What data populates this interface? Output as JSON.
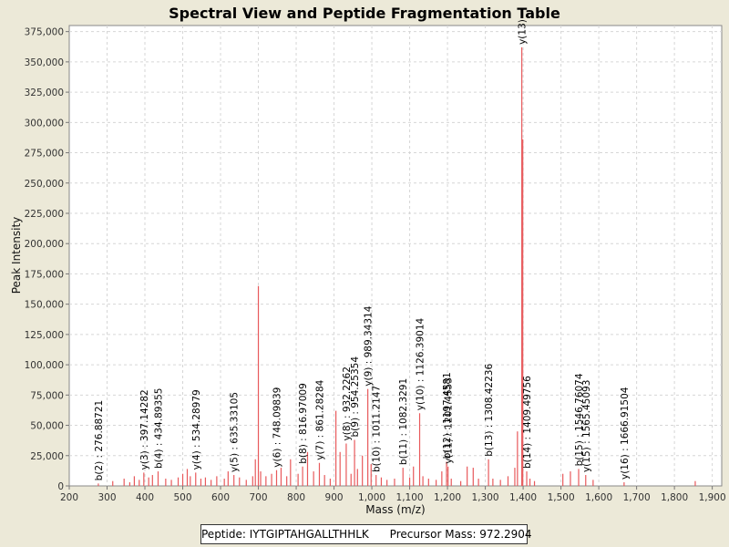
{
  "chart_data": {
    "type": "bar",
    "title": "Spectral View and Peptide Fragmentation Table",
    "xlabel": "Mass (m/z)",
    "ylabel": "Peak Intensity",
    "xlim": [
      200,
      1925
    ],
    "ylim": [
      0,
      380000
    ],
    "xticks": [
      200,
      300,
      400,
      500,
      600,
      700,
      800,
      900,
      1000,
      1100,
      1200,
      1300,
      1400,
      1500,
      1600,
      1700,
      1800,
      1900
    ],
    "xtick_labels": [
      "200",
      "300",
      "400",
      "500",
      "600",
      "700",
      "800",
      "900",
      "1,000",
      "1,100",
      "1,200",
      "1,300",
      "1,400",
      "1,500",
      "1,600",
      "1,700",
      "1,800",
      "1,900"
    ],
    "yticks": [
      0,
      25000,
      50000,
      75000,
      100000,
      125000,
      150000,
      175000,
      200000,
      225000,
      250000,
      275000,
      300000,
      325000,
      350000,
      375000
    ],
    "ytick_labels": [
      "0",
      "25,000",
      "50,000",
      "75,000",
      "100,000",
      "125,000",
      "150,000",
      "175,000",
      "200,000",
      "225,000",
      "250,000",
      "275,000",
      "300,000",
      "325,000",
      "350,000",
      "375,000"
    ],
    "grid": true,
    "peak_color": "#e8595b",
    "peaks": [
      {
        "mz": 276.89,
        "intensity": 2000
      },
      {
        "mz": 315,
        "intensity": 4000
      },
      {
        "mz": 345,
        "intensity": 6000
      },
      {
        "mz": 360,
        "intensity": 3000
      },
      {
        "mz": 372,
        "intensity": 8000
      },
      {
        "mz": 385,
        "intensity": 5000
      },
      {
        "mz": 397.14,
        "intensity": 11000
      },
      {
        "mz": 410,
        "intensity": 7000
      },
      {
        "mz": 420,
        "intensity": 9000
      },
      {
        "mz": 434.89,
        "intensity": 12000
      },
      {
        "mz": 455,
        "intensity": 6000
      },
      {
        "mz": 470,
        "intensity": 5000
      },
      {
        "mz": 488,
        "intensity": 7000
      },
      {
        "mz": 500,
        "intensity": 10000
      },
      {
        "mz": 512,
        "intensity": 14000
      },
      {
        "mz": 520,
        "intensity": 8000
      },
      {
        "mz": 534.29,
        "intensity": 11000
      },
      {
        "mz": 548,
        "intensity": 6000
      },
      {
        "mz": 560,
        "intensity": 7000
      },
      {
        "mz": 575,
        "intensity": 5000
      },
      {
        "mz": 590,
        "intensity": 8000
      },
      {
        "mz": 610,
        "intensity": 6000
      },
      {
        "mz": 620,
        "intensity": 12000
      },
      {
        "mz": 635.33,
        "intensity": 9000
      },
      {
        "mz": 650,
        "intensity": 7000
      },
      {
        "mz": 668,
        "intensity": 5000
      },
      {
        "mz": 685,
        "intensity": 8000
      },
      {
        "mz": 692,
        "intensity": 22000
      },
      {
        "mz": 700,
        "intensity": 165000
      },
      {
        "mz": 706,
        "intensity": 12000
      },
      {
        "mz": 720,
        "intensity": 8000
      },
      {
        "mz": 735,
        "intensity": 10000
      },
      {
        "mz": 748.1,
        "intensity": 13000
      },
      {
        "mz": 760,
        "intensity": 15000
      },
      {
        "mz": 775,
        "intensity": 8000
      },
      {
        "mz": 785,
        "intensity": 22000
      },
      {
        "mz": 805,
        "intensity": 10000
      },
      {
        "mz": 816.97,
        "intensity": 16000
      },
      {
        "mz": 830,
        "intensity": 28000
      },
      {
        "mz": 846,
        "intensity": 12000
      },
      {
        "mz": 861.28,
        "intensity": 19000
      },
      {
        "mz": 875,
        "intensity": 9000
      },
      {
        "mz": 890,
        "intensity": 6000
      },
      {
        "mz": 905,
        "intensity": 62000
      },
      {
        "mz": 916,
        "intensity": 28000
      },
      {
        "mz": 932.23,
        "intensity": 35000
      },
      {
        "mz": 945,
        "intensity": 10000
      },
      {
        "mz": 954.25,
        "intensity": 38000
      },
      {
        "mz": 962,
        "intensity": 14000
      },
      {
        "mz": 975,
        "intensity": 25000
      },
      {
        "mz": 989.34,
        "intensity": 80000
      },
      {
        "mz": 998,
        "intensity": 18000
      },
      {
        "mz": 1011.21,
        "intensity": 9000
      },
      {
        "mz": 1025,
        "intensity": 7000
      },
      {
        "mz": 1040,
        "intensity": 5000
      },
      {
        "mz": 1060,
        "intensity": 6000
      },
      {
        "mz": 1082.33,
        "intensity": 15000
      },
      {
        "mz": 1100,
        "intensity": 7000
      },
      {
        "mz": 1110,
        "intensity": 16000
      },
      {
        "mz": 1126.39,
        "intensity": 60000
      },
      {
        "mz": 1135,
        "intensity": 8000
      },
      {
        "mz": 1150,
        "intensity": 6000
      },
      {
        "mz": 1170,
        "intensity": 5000
      },
      {
        "mz": 1185,
        "intensity": 12000
      },
      {
        "mz": 1197.45,
        "intensity": 20000
      },
      {
        "mz": 1201.45,
        "intensity": 16000
      },
      {
        "mz": 1210,
        "intensity": 6000
      },
      {
        "mz": 1235,
        "intensity": 4000
      },
      {
        "mz": 1252,
        "intensity": 16000
      },
      {
        "mz": 1268,
        "intensity": 15000
      },
      {
        "mz": 1282,
        "intensity": 6000
      },
      {
        "mz": 1308.42,
        "intensity": 22000
      },
      {
        "mz": 1320,
        "intensity": 6000
      },
      {
        "mz": 1340,
        "intensity": 5000
      },
      {
        "mz": 1360,
        "intensity": 8000
      },
      {
        "mz": 1378,
        "intensity": 15000
      },
      {
        "mz": 1385,
        "intensity": 45000
      },
      {
        "mz": 1396.5,
        "intensity": 362000
      },
      {
        "mz": 1399,
        "intensity": 286000
      },
      {
        "mz": 1409.5,
        "intensity": 12000
      },
      {
        "mz": 1418,
        "intensity": 6000
      },
      {
        "mz": 1430,
        "intensity": 4000
      },
      {
        "mz": 1505,
        "intensity": 10000
      },
      {
        "mz": 1525,
        "intensity": 12000
      },
      {
        "mz": 1546.76,
        "intensity": 14000
      },
      {
        "mz": 1565.45,
        "intensity": 9000
      },
      {
        "mz": 1585,
        "intensity": 5000
      },
      {
        "mz": 1666.92,
        "intensity": 3000
      },
      {
        "mz": 1855,
        "intensity": 4000
      }
    ],
    "annotations": [
      {
        "label": "b(2) : 276.88721",
        "mz": 276.89,
        "intensity": 2000
      },
      {
        "label": "y(3) : 397.14282",
        "mz": 397.14,
        "intensity": 11000
      },
      {
        "label": "b(4) : 434.89355",
        "mz": 434.89,
        "intensity": 12000
      },
      {
        "label": "y(4) : 534.28979",
        "mz": 534.29,
        "intensity": 11000
      },
      {
        "label": "y(5) : 635.33105",
        "mz": 635.33,
        "intensity": 9000
      },
      {
        "label": "y(6) : 748.09839",
        "mz": 748.1,
        "intensity": 13000
      },
      {
        "label": "b(8) : 816.97009",
        "mz": 816.97,
        "intensity": 16000
      },
      {
        "label": "y(7) : 861.28284",
        "mz": 861.28,
        "intensity": 19000
      },
      {
        "label": "y(8) : 932.2262",
        "mz": 932.23,
        "intensity": 35000
      },
      {
        "label": "b(9) : 954.25354",
        "mz": 954.25,
        "intensity": 38000
      },
      {
        "label": "y(9) : 989.34314",
        "mz": 989.34,
        "intensity": 80000
      },
      {
        "label": "b(10) : 1011.2147",
        "mz": 1011.21,
        "intensity": 9000
      },
      {
        "label": "b(11) : 1082.3291",
        "mz": 1082.33,
        "intensity": 15000
      },
      {
        "label": "y(10) : 1126.39014",
        "mz": 1126.39,
        "intensity": 60000
      },
      {
        "label": "b(12) : 1197.4581",
        "mz": 1197.45,
        "intensity": 20000
      },
      {
        "label": "y(11) : 1201.4553",
        "mz": 1201.45,
        "intensity": 16000
      },
      {
        "label": "b(13) : 1308.42236",
        "mz": 1308.42,
        "intensity": 22000
      },
      {
        "label": "y(13)",
        "mz": 1396.5,
        "intensity": 362000
      },
      {
        "label": "b(14) : 1409.49756",
        "mz": 1409.5,
        "intensity": 12000
      },
      {
        "label": "b(15) : 1546.76074",
        "mz": 1546.76,
        "intensity": 14000
      },
      {
        "label": "y(15) : 1565.45093",
        "mz": 1565.45,
        "intensity": 9000
      },
      {
        "label": "y(16) : 1666.91504",
        "mz": 1666.92,
        "intensity": 3000
      }
    ]
  },
  "legend": {
    "peptide_label": "Peptide: IYTGIPTAHGALLTHHLK",
    "precursor_label": "Precursor Mass: 972.2904"
  }
}
